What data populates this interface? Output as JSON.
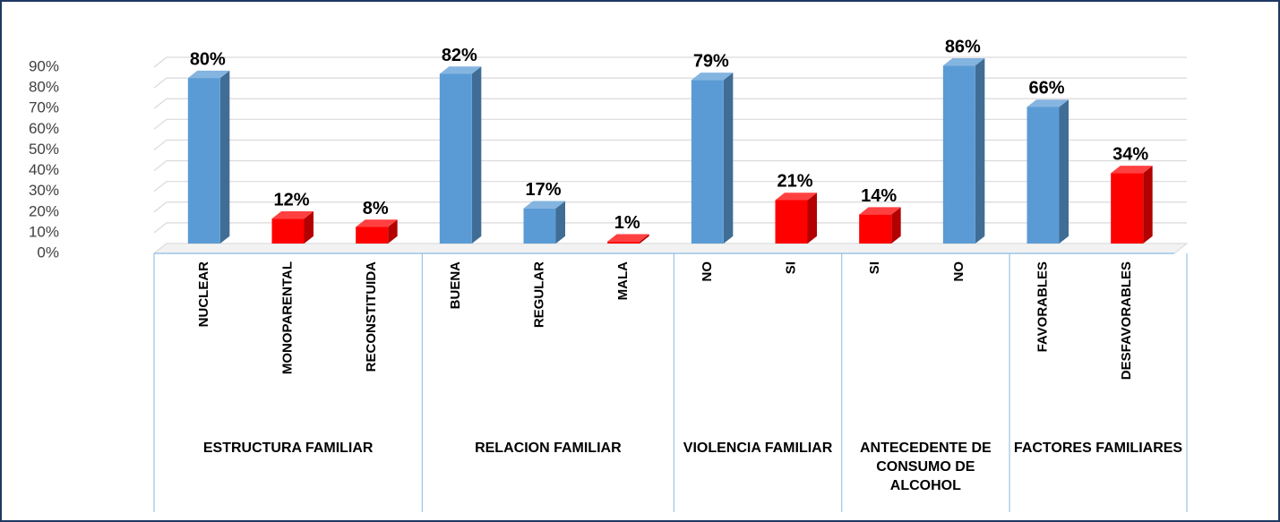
{
  "chart_data": {
    "type": "bar",
    "ylim": [
      0,
      90
    ],
    "yticks": [
      {
        "value": 0,
        "label": "0%"
      },
      {
        "value": 10,
        "label": "10%"
      },
      {
        "value": 20,
        "label": "20%"
      },
      {
        "value": 30,
        "label": "30%"
      },
      {
        "value": 40,
        "label": "40%"
      },
      {
        "value": 50,
        "label": "50%"
      },
      {
        "value": 60,
        "label": "60%"
      },
      {
        "value": 70,
        "label": "70%"
      },
      {
        "value": 80,
        "label": "80%"
      },
      {
        "value": 90,
        "label": "90%"
      }
    ],
    "grid": true,
    "groups": [
      {
        "name": "ESTRUCTURA FAMILIAR",
        "categories": [
          "NUCLEAR",
          "MONOPARENTAL",
          "RECONSTITUIDA"
        ],
        "values": [
          80,
          12,
          8
        ],
        "value_labels": [
          "80%",
          "12%",
          "8%"
        ],
        "colors": [
          "#5b9bd5",
          "#ff0000",
          "#ff0000"
        ]
      },
      {
        "name": "RELACION FAMILIAR",
        "categories": [
          "BUENA",
          "REGULAR",
          "MALA"
        ],
        "values": [
          82,
          17,
          1
        ],
        "value_labels": [
          "82%",
          "17%",
          "1%"
        ],
        "colors": [
          "#5b9bd5",
          "#5b9bd5",
          "#ff0000"
        ]
      },
      {
        "name": "VIOLENCIA FAMILIAR",
        "categories": [
          "NO",
          "SI"
        ],
        "values": [
          79,
          21
        ],
        "value_labels": [
          "79%",
          "21%"
        ],
        "colors": [
          "#5b9bd5",
          "#ff0000"
        ]
      },
      {
        "name": "ANTECEDENTE DE CONSUMO DE ALCOHOL",
        "categories": [
          "SI",
          "NO"
        ],
        "values": [
          14,
          86
        ],
        "value_labels": [
          "14%",
          "86%"
        ],
        "colors": [
          "#ff0000",
          "#5b9bd5"
        ]
      },
      {
        "name": "FACTORES FAMILIARES",
        "categories": [
          "FAVORABLES",
          "DESFAVORABLES"
        ],
        "values": [
          66,
          34
        ],
        "value_labels": [
          "66%",
          "34%"
        ],
        "colors": [
          "#5b9bd5",
          "#ff0000"
        ]
      }
    ]
  }
}
